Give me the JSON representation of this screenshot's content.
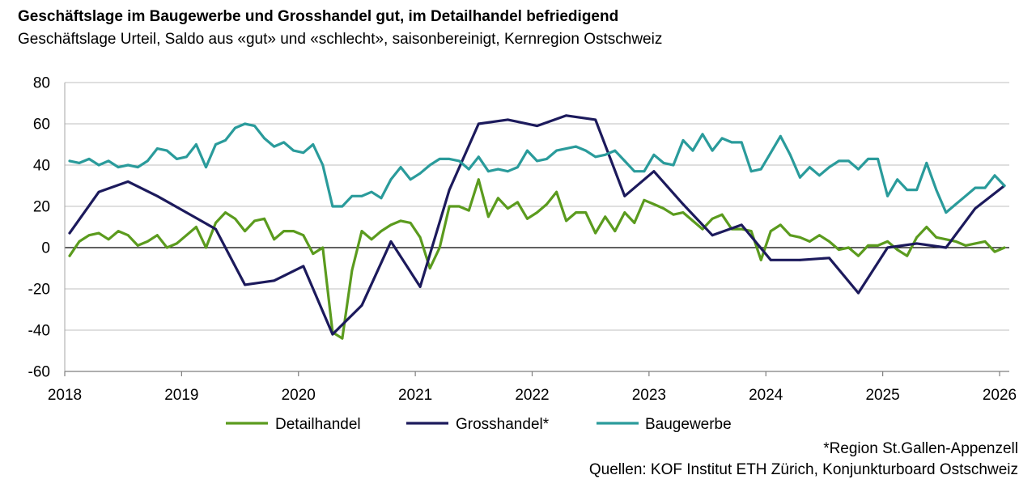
{
  "chart_data": {
    "type": "line",
    "title": "Geschäftslage im Baugewerbe und Grosshandel gut, im Detailhandel befriedigend",
    "subtitle": "Geschäftslage Urteil, Saldo aus «gut» und «schlecht», saisonbereinigt, Kernregion Ostschweiz",
    "xlabel": "",
    "ylabel": "",
    "ylim": [
      -60,
      80
    ],
    "yticks": [
      80,
      60,
      40,
      20,
      0,
      -20,
      -40,
      -60
    ],
    "xticks": [
      "2018",
      "2019",
      "2020",
      "2021",
      "2022",
      "2023",
      "2024",
      "2025",
      "2026"
    ],
    "grid": "horizontal",
    "legend_position": "bottom",
    "series": [
      {
        "name": "Detailhandel",
        "color": "#5b9b1e",
        "x": [
          "2018-01",
          "2018-02",
          "2018-03",
          "2018-04",
          "2018-05",
          "2018-06",
          "2018-07",
          "2018-08",
          "2018-09",
          "2018-10",
          "2018-11",
          "2018-12",
          "2019-01",
          "2019-02",
          "2019-03",
          "2019-04",
          "2019-05",
          "2019-06",
          "2019-07",
          "2019-08",
          "2019-09",
          "2019-10",
          "2019-11",
          "2019-12",
          "2020-01",
          "2020-02",
          "2020-03",
          "2020-04",
          "2020-05",
          "2020-06",
          "2020-07",
          "2020-08",
          "2020-09",
          "2020-10",
          "2020-11",
          "2020-12",
          "2021-01",
          "2021-02",
          "2021-03",
          "2021-04",
          "2021-05",
          "2021-06",
          "2021-07",
          "2021-08",
          "2021-09",
          "2021-10",
          "2021-11",
          "2021-12",
          "2022-01",
          "2022-02",
          "2022-03",
          "2022-04",
          "2022-05",
          "2022-06",
          "2022-07",
          "2022-08",
          "2022-09",
          "2022-10",
          "2022-11",
          "2022-12",
          "2023-01",
          "2023-02",
          "2023-03",
          "2023-04",
          "2023-05",
          "2023-06",
          "2023-07",
          "2023-08",
          "2023-09",
          "2023-10",
          "2023-11",
          "2023-12",
          "2024-01",
          "2024-02",
          "2024-03",
          "2024-04",
          "2024-05",
          "2024-06",
          "2024-07",
          "2024-08",
          "2024-09",
          "2024-10",
          "2024-11",
          "2024-12",
          "2025-01",
          "2025-02",
          "2025-03",
          "2025-04",
          "2025-05",
          "2025-06",
          "2025-07",
          "2025-08",
          "2025-09",
          "2025-10",
          "2025-11",
          "2025-12",
          "2026-01"
        ],
        "values": [
          -4,
          3,
          6,
          7,
          4,
          8,
          6,
          1,
          3,
          6,
          0,
          2,
          6,
          10,
          0,
          12,
          17,
          14,
          8,
          13,
          14,
          4,
          8,
          8,
          6,
          -3,
          0,
          -41,
          -44,
          -11,
          8,
          4,
          8,
          11,
          13,
          12,
          5,
          -10,
          0,
          20,
          20,
          18,
          33,
          15,
          24,
          19,
          22,
          14,
          17,
          21,
          27,
          13,
          17,
          17,
          7,
          15,
          8,
          17,
          12,
          23,
          21,
          19,
          16,
          17,
          13,
          9,
          14,
          16,
          9,
          9,
          8,
          -6,
          8,
          11,
          6,
          5,
          3,
          6,
          3,
          -1,
          0,
          -4,
          1,
          1,
          3,
          -1,
          -4,
          5,
          10,
          5,
          4,
          3,
          1,
          2,
          3,
          -2,
          0
        ]
      },
      {
        "name": "Grosshandel*",
        "color": "#1c1a5c",
        "x": [
          "2018-01",
          "2018-04",
          "2018-07",
          "2018-10",
          "2019-01",
          "2019-04",
          "2019-07",
          "2019-10",
          "2020-01",
          "2020-04",
          "2020-07",
          "2020-10",
          "2021-01",
          "2021-04",
          "2021-07",
          "2021-10",
          "2022-01",
          "2022-04",
          "2022-07",
          "2022-10",
          "2023-01",
          "2023-04",
          "2023-07",
          "2023-10",
          "2024-01",
          "2024-04",
          "2024-07",
          "2024-10",
          "2025-01",
          "2025-04",
          "2025-07",
          "2025-10",
          "2026-01"
        ],
        "values": [
          7,
          27,
          32,
          25,
          17,
          9,
          -18,
          -16,
          -9,
          -42,
          -28,
          3,
          -19,
          28,
          60,
          62,
          59,
          64,
          62,
          25,
          37,
          21,
          6,
          11,
          -6,
          -6,
          -5,
          -22,
          0,
          2,
          0,
          19,
          30
        ]
      },
      {
        "name": "Baugewerbe",
        "color": "#2a9b9b",
        "x": [
          "2018-01",
          "2018-02",
          "2018-03",
          "2018-04",
          "2018-05",
          "2018-06",
          "2018-07",
          "2018-08",
          "2018-09",
          "2018-10",
          "2018-11",
          "2018-12",
          "2019-01",
          "2019-02",
          "2019-03",
          "2019-04",
          "2019-05",
          "2019-06",
          "2019-07",
          "2019-08",
          "2019-09",
          "2019-10",
          "2019-11",
          "2019-12",
          "2020-01",
          "2020-02",
          "2020-03",
          "2020-04",
          "2020-05",
          "2020-06",
          "2020-07",
          "2020-08",
          "2020-09",
          "2020-10",
          "2020-11",
          "2020-12",
          "2021-01",
          "2021-02",
          "2021-03",
          "2021-04",
          "2021-05",
          "2021-06",
          "2021-07",
          "2021-08",
          "2021-09",
          "2021-10",
          "2021-11",
          "2021-12",
          "2022-01",
          "2022-02",
          "2022-03",
          "2022-04",
          "2022-05",
          "2022-06",
          "2022-07",
          "2022-08",
          "2022-09",
          "2022-10",
          "2022-11",
          "2022-12",
          "2023-01",
          "2023-02",
          "2023-03",
          "2023-04",
          "2023-05",
          "2023-06",
          "2023-07",
          "2023-08",
          "2023-09",
          "2023-10",
          "2023-11",
          "2023-12",
          "2024-01",
          "2024-02",
          "2024-03",
          "2024-04",
          "2024-05",
          "2024-06",
          "2024-07",
          "2024-08",
          "2024-09",
          "2024-10",
          "2024-11",
          "2024-12",
          "2025-01",
          "2025-02",
          "2025-03",
          "2025-04",
          "2025-05",
          "2025-06",
          "2025-07",
          "2025-08",
          "2025-09",
          "2025-10",
          "2025-11",
          "2025-12",
          "2026-01"
        ],
        "values": [
          42,
          41,
          43,
          40,
          42,
          39,
          40,
          39,
          42,
          48,
          47,
          43,
          44,
          50,
          39,
          50,
          52,
          58,
          60,
          59,
          53,
          49,
          51,
          47,
          46,
          50,
          40,
          20,
          20,
          25,
          25,
          27,
          24,
          33,
          39,
          33,
          36,
          40,
          43,
          43,
          42,
          38,
          44,
          37,
          38,
          37,
          39,
          47,
          42,
          43,
          47,
          48,
          49,
          47,
          44,
          45,
          47,
          42,
          37,
          37,
          45,
          41,
          40,
          52,
          47,
          55,
          47,
          53,
          51,
          51,
          37,
          38,
          46,
          54,
          45,
          34,
          39,
          35,
          39,
          42,
          42,
          38,
          43,
          43,
          25,
          33,
          28,
          28,
          41,
          28,
          17,
          21,
          25,
          29,
          29,
          35,
          30
        ]
      }
    ]
  },
  "footnotes": {
    "region": "*Region St.Gallen-Appenzell",
    "sources": "Quellen: KOF Institut ETH Zürich, Konjunkturboard Ostschweiz"
  }
}
